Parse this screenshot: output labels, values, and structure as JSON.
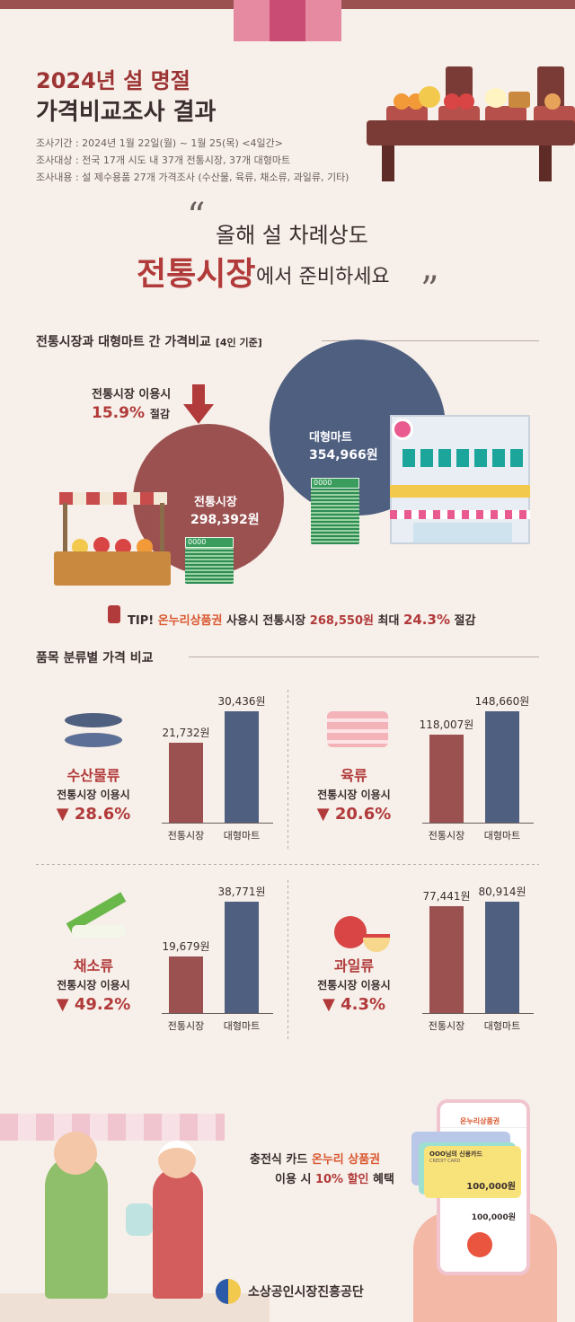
{
  "header": {
    "title_line1": "2024년 설 명절",
    "title_line2": "가격비교조사 결과",
    "meta": [
      "조사기간 : 2024년 1월 22일(월) ~ 1월 25(목) <4일간>",
      "조사대상 : 전국 17개 시도 내 37개 전통시장, 37개 대형마트",
      "조사내용 : 설 제수용품 27개 가격조사 (수산물, 육류, 채소류, 과일류, 기타)"
    ]
  },
  "quote": {
    "line1": "올해 설 차례상도",
    "line2_highlight": "전통시장",
    "line2_rest": "에서 준비하세요",
    "open_mark": "“",
    "close_mark": "”"
  },
  "price_compare": {
    "title": "전통시장과 대형마트 간 가격비교",
    "title_note": "[4인 기준]",
    "saving_label": "전통시장 이용시",
    "saving_pct": "15.9%",
    "saving_suffix": "절감",
    "market_label": "전통시장",
    "market_price": "298,392원",
    "mart_label": "대형마트",
    "mart_price": "354,966원",
    "money_tag": "0000"
  },
  "tip": {
    "prefix": "TIP!",
    "highlight": "온누리상품권",
    "middle": "사용시 전통시장",
    "price": "268,550원",
    "max": "최대",
    "pct": "24.3%",
    "suffix": "절감"
  },
  "category_section": {
    "title": "품목 분류별 가격 비교"
  },
  "chart_data": [
    {
      "type": "bar",
      "name_label": "수산물류",
      "sub": "전통시장 이용시",
      "pct": "▼ 28.6%",
      "categories": [
        "전통시장",
        "대형마트"
      ],
      "values": [
        21732,
        30436
      ],
      "value_labels": [
        "21,732원",
        "30,436원"
      ]
    },
    {
      "type": "bar",
      "name_label": "육류",
      "sub": "전통시장 이용시",
      "pct": "▼ 20.6%",
      "categories": [
        "전통시장",
        "대형마트"
      ],
      "values": [
        118007,
        148660
      ],
      "value_labels": [
        "118,007원",
        "148,660원"
      ]
    },
    {
      "type": "bar",
      "name_label": "채소류",
      "sub": "전통시장 이용시",
      "pct": "▼ 49.2%",
      "categories": [
        "전통시장",
        "대형마트"
      ],
      "values": [
        19679,
        38771
      ],
      "value_labels": [
        "19,679원",
        "38,771원"
      ]
    },
    {
      "type": "bar",
      "name_label": "과일류",
      "sub": "전통시장 이용시",
      "pct": "▼ 4.3%",
      "categories": [
        "전통시장",
        "대형마트"
      ],
      "values": [
        77441,
        80914
      ],
      "value_labels": [
        "77,441원",
        "80,914원"
      ]
    }
  ],
  "footer": {
    "line1_a": "충전식 카드",
    "line1_hl": "온누리 상품권",
    "line2_a": "이용 시",
    "line2_red": "10% 할인",
    "line2_b": "혜택",
    "phone_title": "온누리상품권",
    "card_name": "OOO님의 신용카드",
    "card_type": "CREDIT CARD",
    "card_amount": "100,000원",
    "balance": "100,000원",
    "logo_text": "소상공인시장진흥공단"
  },
  "colors": {
    "red": "#9c5151",
    "blue": "#4f5f80",
    "accent": "#b13a3a",
    "orange": "#d9572f",
    "background": "#f7efe9"
  }
}
